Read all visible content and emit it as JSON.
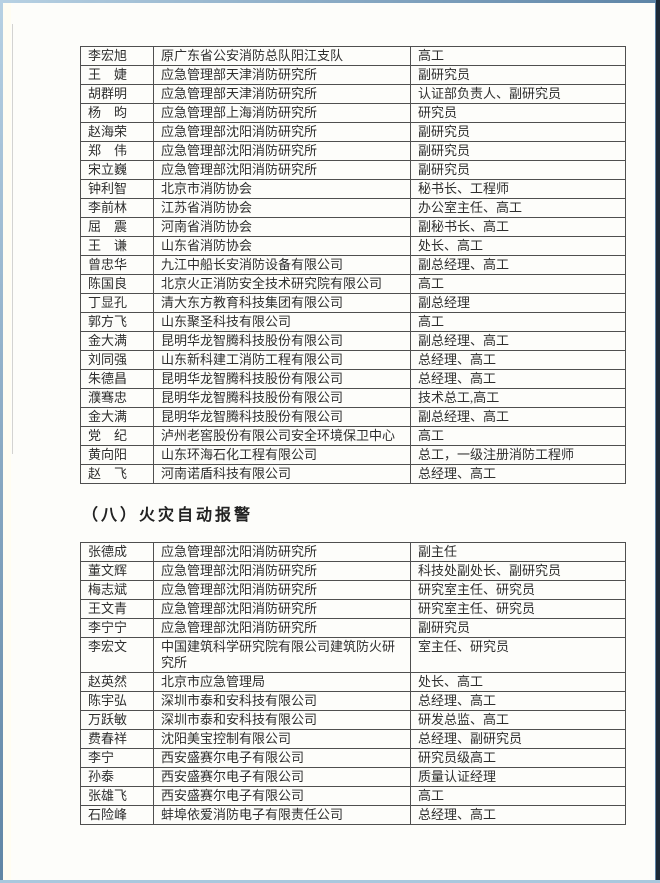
{
  "heading": {
    "text": "（八）火灾自动报警"
  },
  "table1": {
    "rows": [
      {
        "name": "李宏旭",
        "org": "原广东省公安消防总队阳江支队",
        "title": "高工"
      },
      {
        "name": "王　婕",
        "org": "应急管理部天津消防研究所",
        "title": "副研究员"
      },
      {
        "name": "胡群明",
        "org": "应急管理部天津消防研究所",
        "title": "认证部负责人、副研究员"
      },
      {
        "name": "杨　昀",
        "org": "应急管理部上海消防研究所",
        "title": "研究员"
      },
      {
        "name": "赵海荣",
        "org": "应急管理部沈阳消防研究所",
        "title": "副研究员"
      },
      {
        "name": "郑　伟",
        "org": "应急管理部沈阳消防研究所",
        "title": "副研究员"
      },
      {
        "name": "宋立巍",
        "org": "应急管理部沈阳消防研究所",
        "title": "副研究员"
      },
      {
        "name": "钟利智",
        "org": "北京市消防协会",
        "title": "秘书长、工程师"
      },
      {
        "name": "李前林",
        "org": "江苏省消防协会",
        "title": "办公室主任、高工"
      },
      {
        "name": "屈　震",
        "org": "河南省消防协会",
        "title": "副秘书长、高工"
      },
      {
        "name": "王　谦",
        "org": "山东省消防协会",
        "title": "处长、高工"
      },
      {
        "name": "曾忠华",
        "org": "九江中船长安消防设备有限公司",
        "title": "副总经理、高工"
      },
      {
        "name": "陈国良",
        "org": "北京火正消防安全技术研究院有限公司",
        "title": "高工"
      },
      {
        "name": "丁显孔",
        "org": "清大东方教育科技集团有限公司",
        "title": "副总经理"
      },
      {
        "name": "郭方飞",
        "org": "山东聚圣科技有限公司",
        "title": "高工"
      },
      {
        "name": "金大满",
        "org": "昆明华龙智腾科技股份有限公司",
        "title": "副总经理、高工"
      },
      {
        "name": "刘同强",
        "org": "山东新科建工消防工程有限公司",
        "title": "总经理、高工"
      },
      {
        "name": "朱德昌",
        "org": "昆明华龙智腾科技股份有限公司",
        "title": "总经理、高工"
      },
      {
        "name": "濮骞忠",
        "org": "昆明华龙智腾科技股份有限公司",
        "title": "技术总工,高工"
      },
      {
        "name": "金大满",
        "org": "昆明华龙智腾科技股份有限公司",
        "title": "副总经理、高工"
      },
      {
        "name": "党　纪",
        "org": "泸州老窖股份有限公司安全环境保卫中心",
        "title": "高工"
      },
      {
        "name": "黄向阳",
        "org": "山东环海石化工程有限公司",
        "title": "总工，一级注册消防工程师"
      },
      {
        "name": "赵　飞",
        "org": "河南诺盾科技有限公司",
        "title": "总经理、高工"
      }
    ]
  },
  "table2": {
    "rows": [
      {
        "name": "张德成",
        "org": "应急管理部沈阳消防研究所",
        "title": "副主任"
      },
      {
        "name": "董文辉",
        "org": "应急管理部沈阳消防研究所",
        "title": "科技处副处长、副研究员"
      },
      {
        "name": "梅志斌",
        "org": "应急管理部沈阳消防研究所",
        "title": "研究室主任、研究员"
      },
      {
        "name": "王文青",
        "org": "应急管理部沈阳消防研究所",
        "title": "研究室主任、研究员"
      },
      {
        "name": "李宁宁",
        "org": "应急管理部沈阳消防研究所",
        "title": "副研究员"
      },
      {
        "name": "李宏文",
        "org": "中国建筑科学研究院有限公司建筑防火研究所",
        "title": "室主任、研究员"
      },
      {
        "name": "赵英然",
        "org": "北京市应急管理局",
        "title": "处长、高工"
      },
      {
        "name": "陈宇弘",
        "org": "深圳市泰和安科技有限公司",
        "title": "总经理、高工"
      },
      {
        "name": "万跃敏",
        "org": "深圳市泰和安科技有限公司",
        "title": "研发总监、高工"
      },
      {
        "name": "费春祥",
        "org": "沈阳美宝控制有限公司",
        "title": "总经理、副研究员"
      },
      {
        "name": "李宁",
        "org": "西安盛赛尔电子有限公司",
        "title": "研究员级高工"
      },
      {
        "name": "孙泰",
        "org": "西安盛赛尔电子有限公司",
        "title": "质量认证经理"
      },
      {
        "name": "张雄飞",
        "org": "西安盛赛尔电子有限公司",
        "title": "高工"
      },
      {
        "name": "石险峰",
        "org": "蚌埠依爱消防电子有限责任公司",
        "title": "总经理、高工"
      }
    ]
  }
}
